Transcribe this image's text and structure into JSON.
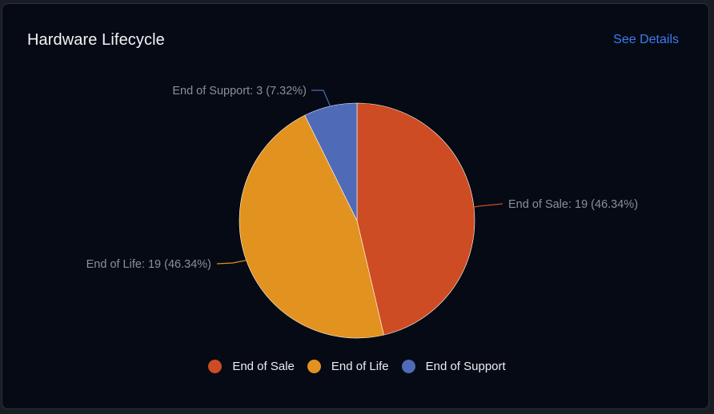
{
  "card": {
    "title": "Hardware Lifecycle",
    "link_label": "See Details"
  },
  "colors": {
    "card_background": "#060a14",
    "link": "#3d7cf0"
  },
  "chart_data": {
    "type": "pie",
    "title": "Hardware Lifecycle",
    "categories": [
      "End of Sale",
      "End of Life",
      "End of Support"
    ],
    "values": [
      19,
      19,
      3
    ],
    "percentages": [
      46.34,
      46.34,
      7.32
    ],
    "colors": [
      "#cd4c23",
      "#e2921e",
      "#4f6ab7"
    ],
    "data_labels": [
      "End of Sale: 19 (46.34%)",
      "End of Life: 19 (46.34%)",
      "End of Support: 3 (7.32%)"
    ],
    "legend": {
      "placement": "bottom",
      "entries": [
        "End of Sale",
        "End of Life",
        "End of Support"
      ]
    }
  }
}
